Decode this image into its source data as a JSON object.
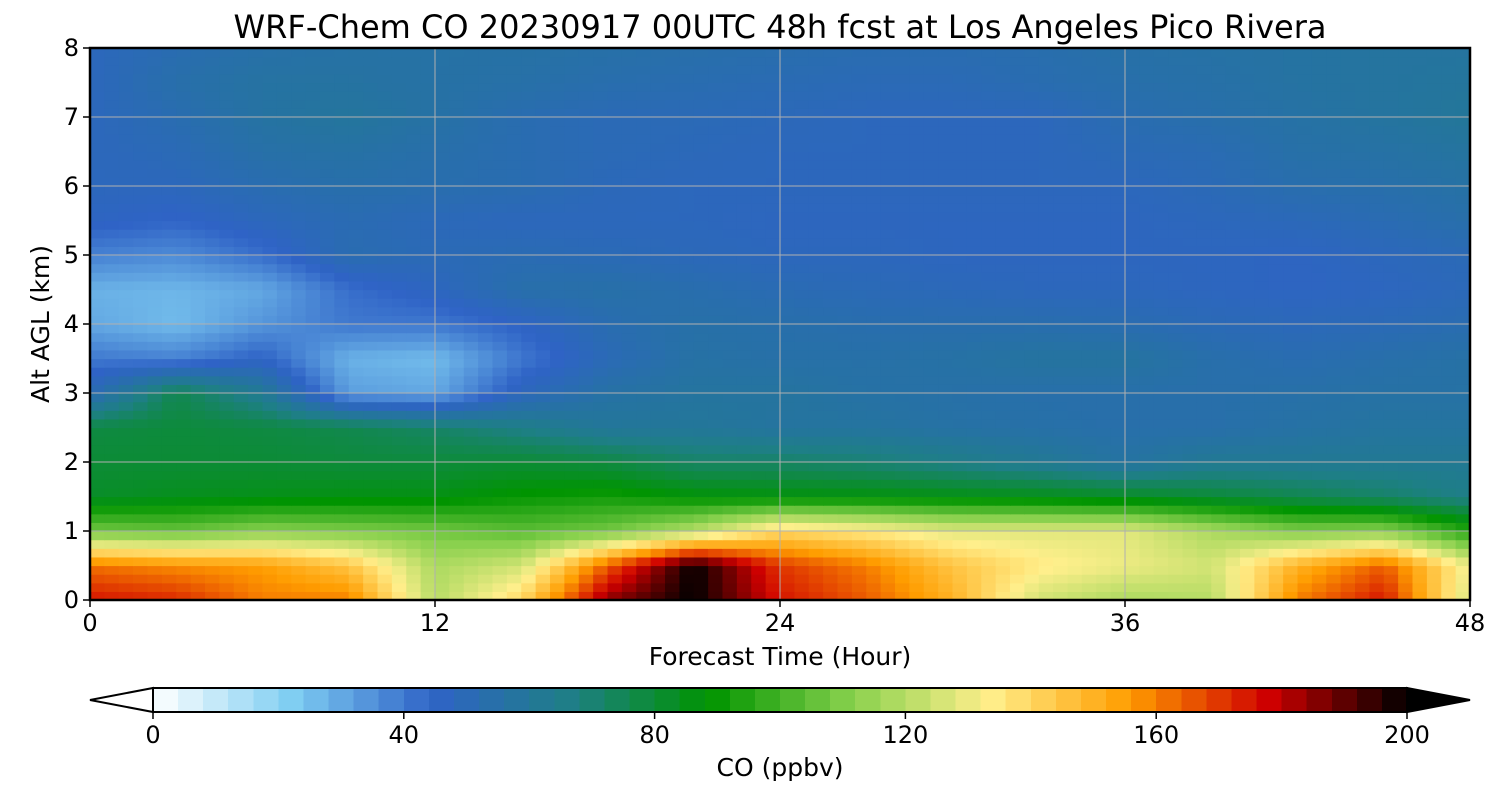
{
  "chart_data": {
    "type": "heatmap",
    "title": "WRF-Chem CO  20230917 00UTC 48h fcst at Los Angeles Pico Rivera",
    "xlabel": "Forecast Time (Hour)",
    "ylabel": "Alt AGL (km)",
    "xlim": [
      0,
      48
    ],
    "ylim": [
      0,
      8
    ],
    "x_ticks": [
      0,
      12,
      24,
      36,
      48
    ],
    "y_ticks": [
      0,
      1,
      2,
      3,
      4,
      5,
      6,
      7,
      8
    ],
    "grid": true,
    "colorbar": {
      "label": "CO  (ppbv)",
      "range": [
        0,
        200
      ],
      "ticks": [
        0,
        40,
        80,
        120,
        160,
        200
      ],
      "extend": "both",
      "colors": [
        "#ffffff",
        "#7fcdf2",
        "#2f63c6",
        "#1e7f86",
        "#009400",
        "#86d04c",
        "#ffef8c",
        "#ff9d00",
        "#cf0000",
        "#000000"
      ]
    },
    "x": [
      0,
      3,
      6,
      9,
      12,
      15,
      18,
      21,
      24,
      27,
      30,
      33,
      36,
      39,
      42,
      45,
      48
    ],
    "y": [
      0,
      0.5,
      1,
      1.5,
      2,
      2.5,
      3,
      3.5,
      4,
      4.5,
      5,
      5.5,
      6,
      6.5,
      7,
      7.5,
      8
    ],
    "z": [
      [
        175,
        172,
        160,
        160,
        120,
        140,
        185,
        200,
        175,
        165,
        150,
        125,
        118,
        120,
        160,
        175,
        125
      ],
      [
        162,
        158,
        155,
        145,
        118,
        125,
        165,
        200,
        170,
        160,
        145,
        135,
        130,
        125,
        150,
        165,
        130
      ],
      [
        108,
        106,
        112,
        110,
        108,
        104,
        108,
        120,
        140,
        135,
        128,
        128,
        128,
        118,
        110,
        112,
        95
      ],
      [
        82,
        84,
        85,
        86,
        86,
        90,
        92,
        88,
        87,
        87,
        86,
        85,
        83,
        80,
        76,
        72,
        66
      ],
      [
        80,
        80,
        80,
        79,
        79,
        80,
        78,
        72,
        72,
        70,
        66,
        62,
        57,
        62,
        62,
        62,
        62
      ],
      [
        78,
        79,
        78,
        76,
        72,
        66,
        60,
        60,
        58,
        58,
        56,
        55,
        54,
        54,
        56,
        58,
        58
      ],
      [
        50,
        76,
        62,
        32,
        30,
        48,
        56,
        58,
        58,
        56,
        55,
        54,
        54,
        54,
        55,
        56,
        56
      ],
      [
        40,
        38,
        45,
        28,
        26,
        40,
        50,
        56,
        55,
        55,
        56,
        58,
        58,
        54,
        52,
        54,
        56
      ],
      [
        30,
        26,
        34,
        40,
        40,
        45,
        52,
        55,
        54,
        53,
        53,
        53,
        52,
        50,
        49,
        50,
        52
      ],
      [
        28,
        27,
        30,
        42,
        47,
        54,
        55,
        53,
        51,
        50,
        49,
        48,
        48,
        47,
        46,
        47,
        49
      ],
      [
        38,
        36,
        42,
        52,
        50,
        51,
        50,
        49,
        48,
        48,
        47,
        47,
        47,
        47,
        46,
        48,
        50
      ],
      [
        46,
        44,
        48,
        51,
        49,
        48,
        48,
        48,
        47,
        47,
        47,
        47,
        47,
        48,
        49,
        51,
        54
      ],
      [
        48,
        48,
        52,
        54,
        53,
        52,
        49,
        48,
        48,
        48,
        48,
        48,
        48,
        50,
        53,
        54,
        56
      ],
      [
        48,
        50,
        55,
        56,
        54,
        52,
        50,
        49,
        48,
        48,
        48,
        48,
        50,
        51,
        55,
        56,
        58
      ],
      [
        48,
        52,
        57,
        59,
        56,
        52,
        50,
        50,
        49,
        48,
        48,
        48,
        52,
        54,
        56,
        58,
        60
      ],
      [
        48,
        54,
        57,
        57,
        56,
        55,
        53,
        52,
        51,
        50,
        50,
        52,
        54,
        55,
        57,
        58,
        59
      ],
      [
        48,
        52,
        55,
        56,
        56,
        56,
        55,
        54,
        53,
        52,
        52,
        53,
        55,
        56,
        57,
        58,
        58
      ]
    ]
  }
}
